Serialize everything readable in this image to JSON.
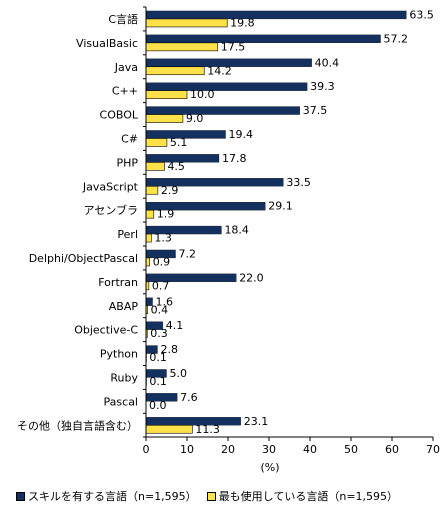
{
  "chart_data": {
    "type": "bar",
    "orientation": "horizontal",
    "categories": [
      "C言語",
      "VisualBasic",
      "Java",
      "C++",
      "COBOL",
      "C#",
      "PHP",
      "JavaScript",
      "アセンブラ",
      "Perl",
      "Delphi/ObjectPascal",
      "Fortran",
      "ABAP",
      "Objective-C",
      "Python",
      "Ruby",
      "Pascal",
      "その他（独自言語含む）"
    ],
    "series": [
      {
        "name": "スキルを有する言語（n=1,595）",
        "color": "#14305E",
        "values": [
          63.5,
          57.2,
          40.4,
          39.3,
          37.5,
          19.4,
          17.8,
          33.5,
          29.1,
          18.4,
          7.2,
          22.0,
          1.6,
          4.1,
          2.8,
          5.0,
          7.6,
          23.1
        ],
        "labels": [
          "63.5",
          "57.2",
          "40.4",
          "39.3",
          "37.5",
          "19.4",
          "17.8",
          "33.5",
          "29.1",
          "18.4",
          "7.2",
          "22.0",
          "1.6",
          "4.1",
          "2.8",
          "5.0",
          "7.6",
          "23.1"
        ]
      },
      {
        "name": "最も使用している言語（n=1,595）",
        "color": "#FFE24A",
        "values": [
          19.8,
          17.5,
          14.2,
          10.0,
          9.0,
          5.1,
          4.5,
          2.9,
          1.9,
          1.3,
          0.9,
          0.7,
          0.4,
          0.3,
          0.1,
          0.1,
          0.0,
          11.3
        ],
        "labels": [
          "19.8",
          "17.5",
          "14.2",
          "10.0",
          "9.0",
          "5.1",
          "4.5",
          "2.9",
          "1.9",
          "1.3",
          "0.9",
          "0.7",
          "0.4",
          "0.3",
          "0.1",
          "0.1",
          "0.0",
          "11.3"
        ]
      }
    ],
    "xlim": [
      0,
      70
    ],
    "xticks": [
      0,
      10,
      20,
      30,
      40,
      50,
      60,
      70
    ],
    "xtick_labels": [
      "0",
      "10",
      "20",
      "30",
      "40",
      "50",
      "60",
      "70"
    ],
    "xlabel": "(%)",
    "grid": false,
    "legend_position": "bottom"
  }
}
